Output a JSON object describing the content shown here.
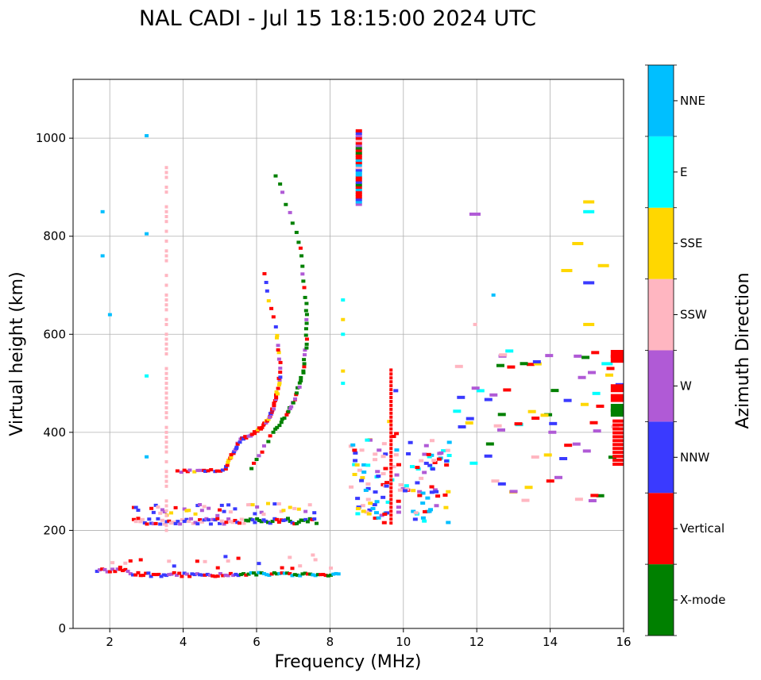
{
  "chart_data": {
    "type": "scatter",
    "title": "NAL CADI - Jul 15 18:15:00 2024 UTC",
    "xlabel": "Frequency (MHz)",
    "ylabel": "Virtual height (km)",
    "xlim": [
      1,
      16
    ],
    "ylim": [
      0,
      1120
    ],
    "xticks": [
      "2",
      "4",
      "6",
      "8",
      "10",
      "12",
      "14",
      "16"
    ],
    "yticks": [
      "0",
      "200",
      "400",
      "600",
      "800",
      "1000"
    ],
    "grid": true,
    "colorbar": {
      "label": "Azimuth Direction",
      "categories": [
        {
          "name": "X-mode",
          "color": "#008000"
        },
        {
          "name": "Vertical",
          "color": "#ff0000"
        },
        {
          "name": "NNW",
          "color": "#3a3aff"
        },
        {
          "name": "W",
          "color": "#b05ad6"
        },
        {
          "name": "SSW",
          "color": "#ffb6c1"
        },
        {
          "name": "SSE",
          "color": "#ffd700"
        },
        {
          "name": "E",
          "color": "#00ffff"
        },
        {
          "name": "NNE",
          "color": "#00bfff"
        }
      ]
    },
    "series": [
      {
        "name": "E-layer trace",
        "x_range": [
          1.6,
          8.2
        ],
        "y_range": [
          100,
          130
        ],
        "dominant": [
          "Vertical",
          "X-mode",
          "NNW"
        ]
      },
      {
        "name": "F-layer low trace",
        "x_range": [
          2.6,
          7.6
        ],
        "y_range": [
          205,
          260
        ],
        "dominant": [
          "Vertical",
          "NNW",
          "W",
          "X-mode"
        ]
      },
      {
        "name": "F-layer cusp (Vertical)",
        "points": [
          [
            3.8,
            320
          ],
          [
            4.5,
            320
          ],
          [
            5.1,
            325
          ],
          [
            5.3,
            360
          ],
          [
            5.5,
            385
          ],
          [
            5.8,
            395
          ],
          [
            6.1,
            410
          ],
          [
            6.3,
            430
          ],
          [
            6.4,
            450
          ],
          [
            6.5,
            480
          ],
          [
            6.6,
            520
          ],
          [
            6.5,
            600
          ],
          [
            6.1,
            740
          ]
        ]
      },
      {
        "name": "F-layer X-mode",
        "points": [
          [
            5.8,
            325
          ],
          [
            6.4,
            400
          ],
          [
            6.8,
            440
          ],
          [
            7.0,
            470
          ],
          [
            7.2,
            520
          ],
          [
            7.3,
            580
          ],
          [
            7.3,
            660
          ],
          [
            7.1,
            790
          ],
          [
            6.4,
            945
          ]
        ]
      },
      {
        "name": "Spread echoes 8.5-11 MHz",
        "x_range": [
          8.5,
          11.2
        ],
        "y_range": [
          210,
          530
        ],
        "dominant": [
          "Vertical",
          "SSE",
          "SSW",
          "W",
          "E"
        ]
      },
      {
        "name": "Sparse echoes 12-16 MHz",
        "x_range": [
          11.3,
          16
        ],
        "y_range": [
          255,
          870
        ],
        "dominant": [
          "Vertical",
          "SSE",
          "SSW",
          "W",
          "E"
        ]
      },
      {
        "name": "Column at 3.5 MHz",
        "points": [
          [
            3.5,
            200
          ],
          [
            3.5,
            450
          ],
          [
            3.5,
            700
          ],
          [
            3.5,
            975
          ]
        ],
        "category": "SSW"
      },
      {
        "name": "Column at 8.7 MHz",
        "points": [
          [
            8.7,
            865
          ],
          [
            8.7,
            1015
          ]
        ],
        "category": "mixed"
      }
    ]
  }
}
